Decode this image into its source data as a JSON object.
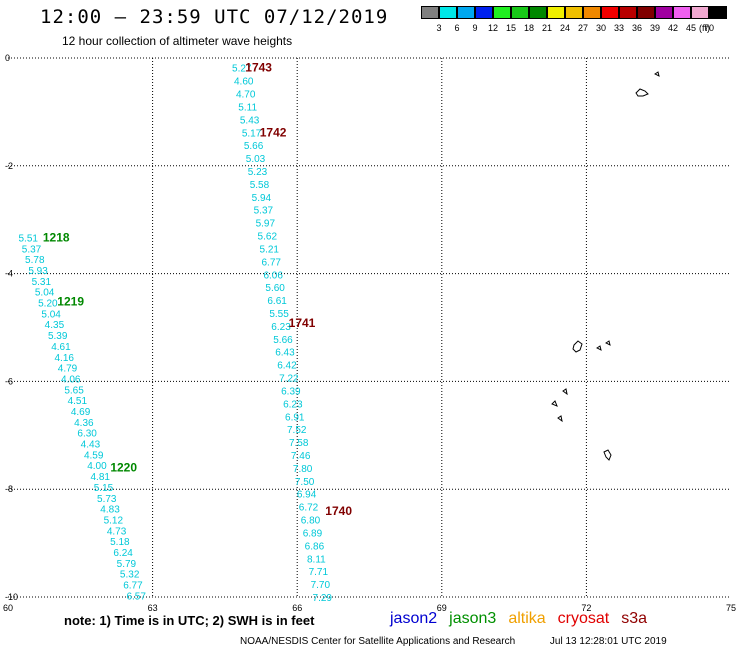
{
  "header": {
    "title": "12:00 — 23:59 UTC 07/12/2019",
    "subtitle": "12 hour collection of altimeter wave heights"
  },
  "legend": {
    "unit": "(ft)",
    "items": [
      {
        "color": "#808080",
        "label": "3"
      },
      {
        "color": "#00e8e8",
        "label": "6"
      },
      {
        "color": "#00a8f0",
        "label": "9"
      },
      {
        "color": "#0020f0",
        "label": "12"
      },
      {
        "color": "#20ee20",
        "label": "15"
      },
      {
        "color": "#18c818",
        "label": "18"
      },
      {
        "color": "#008800",
        "label": "21"
      },
      {
        "color": "#f0f000",
        "label": "24"
      },
      {
        "color": "#f0c000",
        "label": "27"
      },
      {
        "color": "#f08800",
        "label": "30"
      },
      {
        "color": "#f00000",
        "label": "33"
      },
      {
        "color": "#b80000",
        "label": "36"
      },
      {
        "color": "#800000",
        "label": "39"
      },
      {
        "color": "#a000a0",
        "label": "42"
      },
      {
        "color": "#f060f0",
        "label": "45"
      },
      {
        "color": "#f0a8d0",
        "label": "70"
      },
      {
        "color": "#000000",
        "label": ""
      }
    ]
  },
  "chart_data": {
    "type": "scatter",
    "title": "12:00 — 23:59 UTC 07/12/2019",
    "subtitle": "12 hour collection of altimeter wave heights",
    "xlim": [
      60,
      75
    ],
    "ylim": [
      -10,
      0
    ],
    "x_ticks": [
      "60",
      "63",
      "66",
      "69",
      "72",
      "75"
    ],
    "y_ticks": [
      "0",
      "-2",
      "-4",
      "-6",
      "-8",
      "-10"
    ],
    "grid": true,
    "value_color": "#00c8d8",
    "tracks": [
      {
        "satellite": "jason3",
        "color": "#008800",
        "start": [
          60.42,
          -3.33
        ],
        "end": [
          62.66,
          -9.97
        ],
        "values": [
          "5.51",
          "5.37",
          "5.78",
          "5.93",
          "5.31",
          "5.04",
          "5.20",
          "5.04",
          "4.35",
          "5.39",
          "4.61",
          "4.16",
          "4.79",
          "4.06",
          "5.65",
          "4.51",
          "4.69",
          "4.36",
          "6.30",
          "4.43",
          "4.59",
          "4.00",
          "4.81",
          "5.15",
          "5.73",
          "4.83",
          "5.12",
          "4.73",
          "5.18",
          "6.24",
          "5.79",
          "5.32",
          "6.77",
          "6.57"
        ],
        "passes": [
          {
            "label": "1218",
            "x": 61.0,
            "y": -3.33
          },
          {
            "label": "1219",
            "x": 61.3,
            "y": -4.52
          },
          {
            "label": "1220",
            "x": 62.4,
            "y": -7.6
          }
        ]
      },
      {
        "satellite": "s3a",
        "color": "#800000",
        "start": [
          64.85,
          -0.18
        ],
        "end": [
          66.52,
          -10.0
        ],
        "values": [
          "5.27",
          "4.60",
          "4.70",
          "5.11",
          "5.43",
          "5.17",
          "5.66",
          "5.03",
          "5.23",
          "5.58",
          "5.94",
          "5.37",
          "5.97",
          "5.62",
          "5.21",
          "6.77",
          "6.06",
          "5.60",
          "6.61",
          "5.55",
          "6.23",
          "5.66",
          "6.43",
          "6.42",
          "7.22",
          "6.39",
          "6.23",
          "6.91",
          "7.52",
          "7.58",
          "7.46",
          "7.80",
          "7.50",
          "6.94",
          "6.72",
          "6.80",
          "6.89",
          "6.86",
          "8.11",
          "7.71",
          "7.70",
          "7.29"
        ],
        "passes": [
          {
            "label": "1743",
            "x": 65.2,
            "y": -0.18
          },
          {
            "label": "1742",
            "x": 65.5,
            "y": -1.38
          },
          {
            "label": "1741",
            "x": 66.1,
            "y": -4.92
          },
          {
            "label": "1740",
            "x": 66.86,
            "y": -8.4
          }
        ]
      }
    ],
    "note": "note:  1) Time is in UTC; 2) SWH is in feet"
  },
  "satellites": [
    {
      "name": "jason2",
      "color": "#0000d0"
    },
    {
      "name": "jason3",
      "color": "#009000"
    },
    {
      "name": "altika",
      "color": "#f0a000"
    },
    {
      "name": "cryosat",
      "color": "#e00000"
    },
    {
      "name": "s3a",
      "color": "#900000"
    }
  ],
  "footer": {
    "credit": "NOAA/NESDIS Center for Satellite Applications and Research",
    "timestamp": "Jul 13 12:28:01 UTC 2019"
  }
}
